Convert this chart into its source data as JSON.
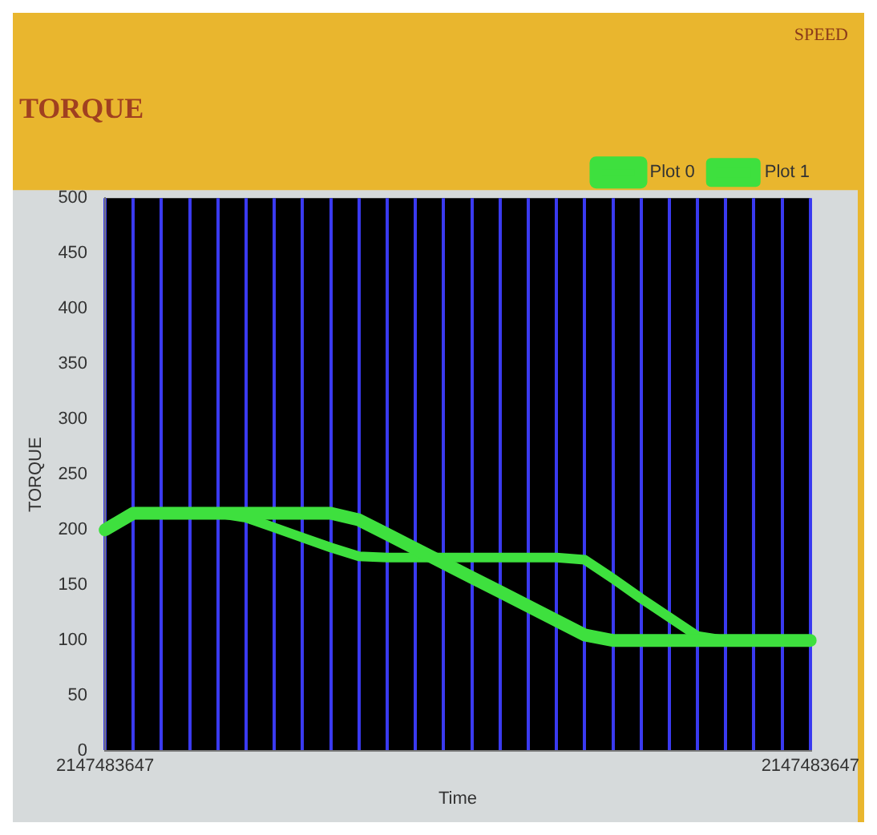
{
  "chart_data": {
    "type": "line",
    "title": "TORQUE",
    "xlabel": "Time",
    "ylabel": "TORQUE",
    "annotations": [
      "SPEED"
    ],
    "categories": [
      "2147483647",
      null,
      null,
      null,
      null,
      null,
      null,
      null,
      null,
      null,
      null,
      null,
      null,
      null,
      null,
      null,
      null,
      null,
      null,
      null,
      null,
      null,
      null,
      null,
      null,
      "2147483647"
    ],
    "series": [
      {
        "name": "Plot 0",
        "color": "#3ee03e",
        "values": [
          200,
          215,
          215,
          215,
          215,
          215,
          215,
          215,
          215,
          209,
          196,
          183,
          170,
          157,
          144,
          131,
          118,
          105,
          100,
          100,
          100,
          100,
          100,
          100,
          100,
          100
        ]
      },
      {
        "name": "Plot 1",
        "color": "#3ee03e",
        "values": [
          200,
          215,
          215,
          215,
          215,
          211,
          202,
          193,
          184,
          176,
          175,
          175,
          175,
          175,
          175,
          175,
          175,
          173,
          156,
          138,
          121,
          104,
          100,
          100,
          100,
          100
        ]
      }
    ],
    "ylim": [
      0,
      500
    ],
    "yticks": [
      0,
      50,
      100,
      150,
      200,
      250,
      300,
      350,
      400,
      450,
      500
    ],
    "grid": "x",
    "legend": "top right",
    "marker": "none",
    "line_style": "solid"
  }
}
